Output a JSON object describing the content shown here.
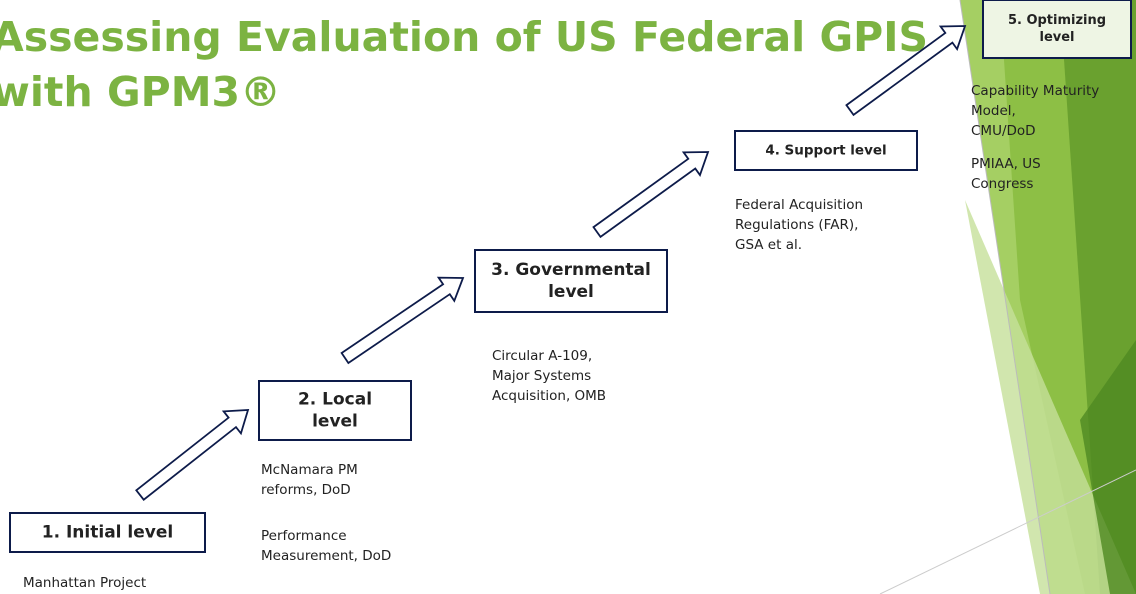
{
  "title": [
    "Assessing Evaluation of US Federal GPIS",
    "with GPM3®"
  ],
  "levels": [
    {
      "label": [
        "1. Initial level"
      ],
      "notes": [
        [
          "Manhattan Project"
        ]
      ]
    },
    {
      "label": [
        "2. Local",
        "level"
      ],
      "notes": [
        [
          "McNamara PM",
          "reforms, DoD"
        ],
        [
          "Performance",
          "Measurement, DoD"
        ]
      ]
    },
    {
      "label": [
        "3. Governmental",
        "level"
      ],
      "notes": [
        [
          "Circular A-109,",
          "Major Systems",
          "Acquisition, OMB"
        ]
      ]
    },
    {
      "label": [
        "4. Support level"
      ],
      "notes": [
        [
          "Federal Acquisition",
          "Regulations (FAR),",
          "GSA et al."
        ]
      ]
    },
    {
      "label": [
        "5. Optimizing",
        "level"
      ],
      "notes": [
        [
          "Capability Maturity",
          "Model,",
          "CMU/DoD"
        ],
        [
          "PMIAA, US",
          "Congress"
        ]
      ]
    }
  ]
}
